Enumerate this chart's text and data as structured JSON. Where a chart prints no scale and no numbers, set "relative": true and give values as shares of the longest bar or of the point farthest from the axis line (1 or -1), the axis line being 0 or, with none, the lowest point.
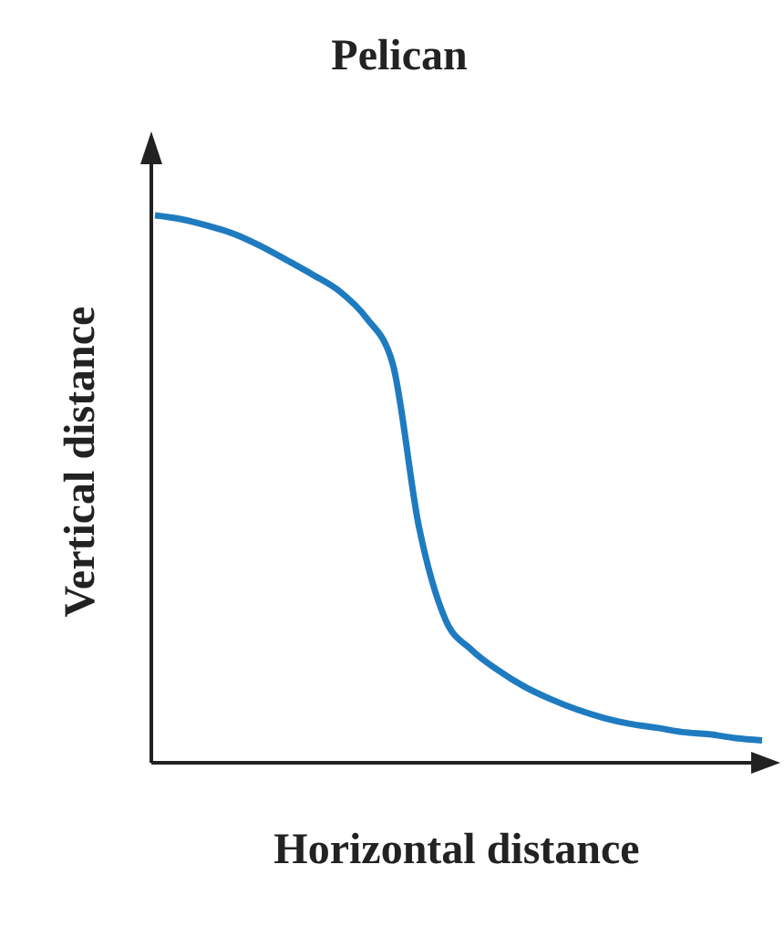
{
  "chart_data": {
    "type": "line",
    "title": "Pelican",
    "xlabel": "Horizontal distance",
    "ylabel": "Vertical distance",
    "relative": true,
    "categories": [
      null,
      null,
      null,
      null,
      null,
      null,
      null,
      null,
      null,
      null,
      null,
      null,
      null,
      null,
      null,
      null,
      null,
      null,
      null,
      null,
      null,
      null,
      null,
      null
    ],
    "series": [
      {
        "color": "#1f7bc0",
        "values": [
          1.0,
          0.993,
          0.981,
          0.966,
          0.944,
          0.918,
          0.891,
          0.861,
          0.813,
          0.73,
          0.431,
          0.262,
          0.206,
          0.169,
          0.139,
          0.116,
          0.097,
          0.082,
          0.071,
          0.064,
          0.056,
          0.052,
          0.045,
          0.041
        ]
      }
    ],
    "grid": false,
    "legend": false,
    "marker": "none",
    "line_style": "solid"
  }
}
